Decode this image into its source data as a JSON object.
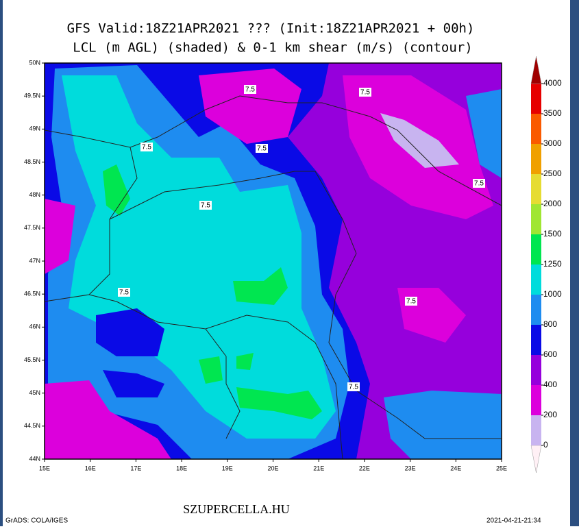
{
  "title_lines": [
    "GFS Valid:18Z21APR2021 ??? (Init:18Z21APR2021 + 00h)",
    "LCL (m AGL) (shaded) & 0-1 km shear (m/s) (contour)"
  ],
  "lat_labels": [
    "44N",
    "44.5N",
    "45N",
    "45.5N",
    "46N",
    "46.5N",
    "47N",
    "47.5N",
    "48N",
    "48.5N",
    "49N",
    "49.5N",
    "50N"
  ],
  "lon_labels": [
    "15E",
    "16E",
    "17E",
    "18E",
    "19E",
    "20E",
    "21E",
    "22E",
    "23E",
    "24E",
    "25E"
  ],
  "contour_labels": [
    "7.5",
    "7.5",
    "7.5",
    "7.5",
    "7.5",
    "7.5",
    "7.5",
    "7.5",
    "7.5"
  ],
  "colorbar": {
    "levels": [
      0,
      200,
      400,
      600,
      800,
      1000,
      1250,
      1500,
      2000,
      2500,
      3000,
      3500,
      4000
    ],
    "colors": [
      "#fff0f5",
      "#c8b4f0",
      "#dc00dc",
      "#9600dc",
      "#0a0ae6",
      "#1e8cf0",
      "#00dcdc",
      "#00e650",
      "#a0e632",
      "#e6dc32",
      "#f0a000",
      "#fa5a00",
      "#e60000",
      "#a00000"
    ]
  },
  "footer": {
    "site": "SZUPERCELLA.HU",
    "credit": "GrADS: COLA/IGES",
    "timestamp": "2021-04-21-21:34"
  }
}
